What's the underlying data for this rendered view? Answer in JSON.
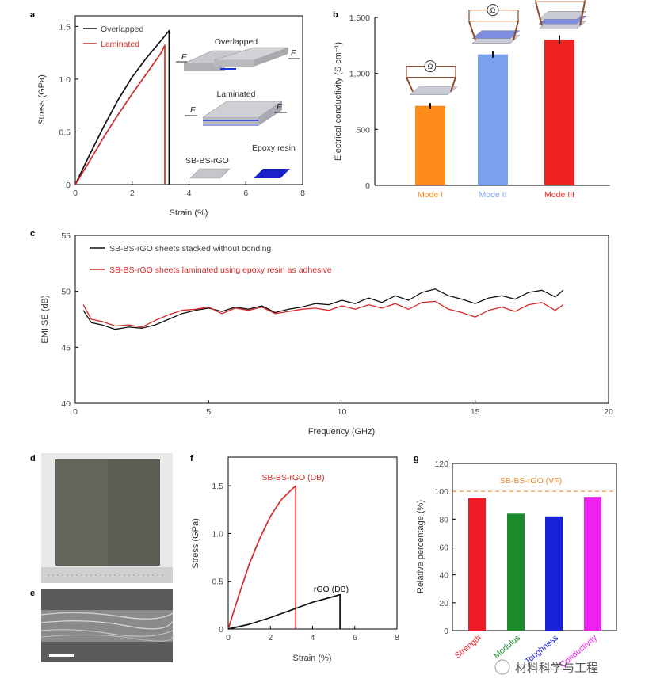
{
  "panels": {
    "a": "a",
    "b": "b",
    "c": "c",
    "d": "d",
    "e": "e",
    "f": "f",
    "g": "g"
  },
  "watermark": "材料科学与工程",
  "chart_data": [
    {
      "id": "a",
      "type": "line",
      "xlabel": "Strain (%)",
      "ylabel": "Stress (GPa)",
      "xlim": [
        0,
        8
      ],
      "ylim": [
        0,
        1.6
      ],
      "xticks": [
        "0",
        "2",
        "4",
        "6",
        "8"
      ],
      "yticks": [
        "0",
        "0.5",
        "1.0",
        "1.5"
      ],
      "legend": [
        "Overlapped",
        "Laminated"
      ],
      "legend_position": "top-left",
      "series": [
        {
          "name": "Overlapped",
          "color": "#111111",
          "x": [
            0,
            0.5,
            1.0,
            1.5,
            2.0,
            2.5,
            3.0,
            3.3,
            3.3
          ],
          "y": [
            0,
            0.28,
            0.55,
            0.8,
            1.02,
            1.2,
            1.36,
            1.46,
            0
          ]
        },
        {
          "name": "Laminated",
          "color": "#d42a2a",
          "x": [
            0,
            0.5,
            1.0,
            1.5,
            2.0,
            2.5,
            3.0,
            3.15,
            3.15
          ],
          "y": [
            0,
            0.22,
            0.45,
            0.66,
            0.86,
            1.05,
            1.24,
            1.32,
            0
          ]
        }
      ],
      "inset": {
        "overlapped_label": "Overlapped",
        "laminated_label": "Laminated",
        "force_label": "F",
        "key_labels": [
          "SB-BS-rGO",
          "Epoxy resin"
        ]
      }
    },
    {
      "id": "b",
      "type": "bar",
      "ylabel": "Electrical conductivity (S cm⁻¹)",
      "categories": [
        "Mode I",
        "Mode II",
        "Mode III"
      ],
      "values": [
        710,
        1170,
        1300
      ],
      "errors": [
        25,
        30,
        40
      ],
      "colors": [
        "#ff8c1a",
        "#7aa0ee",
        "#ee2222"
      ],
      "ylim": [
        0,
        1500
      ],
      "yticks": [
        "0",
        "500",
        "1,000",
        "1,500"
      ],
      "ohm_symbol": "Ω"
    },
    {
      "id": "c",
      "type": "line",
      "xlabel": "Frequency (GHz)",
      "ylabel": "EMI SE (dB)",
      "xlim": [
        0,
        20
      ],
      "ylim": [
        40,
        55
      ],
      "xticks": [
        "0",
        "5",
        "10",
        "15",
        "20"
      ],
      "yticks": [
        "40",
        "45",
        "50",
        "55"
      ],
      "legend_position": "top-left",
      "series": [
        {
          "name": "SB-BS-rGO sheets stacked without bonding",
          "color": "#111111",
          "x": [
            0.3,
            0.6,
            1,
            1.5,
            2,
            2.5,
            3,
            3.5,
            4,
            4.5,
            5,
            5.5,
            6,
            6.5,
            7,
            7.5,
            8,
            8.5,
            9,
            9.5,
            10,
            10.5,
            11,
            11.5,
            12,
            12.5,
            13,
            13.5,
            14,
            14.5,
            15,
            15.5,
            16,
            16.5,
            17,
            17.5,
            18,
            18.3
          ],
          "y": [
            48.3,
            47.2,
            47.0,
            46.6,
            46.8,
            46.7,
            47.0,
            47.5,
            48.0,
            48.3,
            48.5,
            48.2,
            48.6,
            48.4,
            48.7,
            48.1,
            48.4,
            48.6,
            48.9,
            48.8,
            49.2,
            48.9,
            49.4,
            49.0,
            49.6,
            49.2,
            49.9,
            50.2,
            49.6,
            49.3,
            48.9,
            49.4,
            49.6,
            49.3,
            49.9,
            50.1,
            49.5,
            50.1
          ]
        },
        {
          "name": "SB-BS-rGO sheets laminated using epoxy resin as adhesive",
          "color": "#d42a2a",
          "x": [
            0.3,
            0.6,
            1,
            1.5,
            2,
            2.5,
            3,
            3.5,
            4,
            4.5,
            5,
            5.5,
            6,
            6.5,
            7,
            7.5,
            8,
            8.5,
            9,
            9.5,
            10,
            10.5,
            11,
            11.5,
            12,
            12.5,
            13,
            13.5,
            14,
            14.5,
            15,
            15.5,
            16,
            16.5,
            17,
            17.5,
            18,
            18.3
          ],
          "y": [
            48.8,
            47.5,
            47.3,
            46.9,
            47.0,
            46.8,
            47.4,
            47.9,
            48.3,
            48.4,
            48.6,
            48.0,
            48.5,
            48.3,
            48.6,
            48.0,
            48.2,
            48.4,
            48.5,
            48.3,
            48.7,
            48.4,
            48.8,
            48.5,
            48.9,
            48.4,
            49.0,
            49.1,
            48.4,
            48.1,
            47.7,
            48.3,
            48.6,
            48.2,
            48.8,
            49.0,
            48.3,
            48.8
          ]
        }
      ]
    },
    {
      "id": "f",
      "type": "line",
      "xlabel": "Strain (%)",
      "ylabel": "Stress (GPa)",
      "xlim": [
        0,
        8
      ],
      "ylim": [
        0,
        1.8
      ],
      "xticks": [
        "0",
        "2",
        "4",
        "6",
        "8"
      ],
      "yticks": [
        "0",
        "0.5",
        "1.0",
        "1.5"
      ],
      "annotations": [
        "SB-BS-rGO (DB)",
        "rGO (DB)"
      ],
      "series": [
        {
          "name": "SB-BS-rGO (DB)",
          "color": "#d42a2a",
          "x": [
            0,
            0.5,
            1.0,
            1.5,
            2.0,
            2.5,
            3.0,
            3.2,
            3.2
          ],
          "y": [
            0,
            0.35,
            0.68,
            0.95,
            1.18,
            1.35,
            1.46,
            1.5,
            0
          ]
        },
        {
          "name": "rGO (DB)",
          "color": "#111111",
          "x": [
            0,
            1,
            2,
            3,
            4,
            5,
            5.3,
            5.3
          ],
          "y": [
            0,
            0.05,
            0.12,
            0.2,
            0.28,
            0.34,
            0.36,
            0
          ]
        }
      ]
    },
    {
      "id": "g",
      "type": "bar",
      "ylabel": "Relative percentage (%)",
      "categories": [
        "Strength",
        "Modulus",
        "Toughness",
        "Conductivity"
      ],
      "values": [
        95,
        84,
        82,
        96
      ],
      "colors": [
        "#ee1c25",
        "#1a8a2a",
        "#1a22d8",
        "#ee22ee"
      ],
      "ylim": [
        0,
        120
      ],
      "yticks": [
        "0",
        "20",
        "40",
        "60",
        "80",
        "100",
        "120"
      ],
      "reference_line": {
        "value": 100,
        "label": "SB-BS-rGO (VF)",
        "color": "#ee8a2a"
      }
    }
  ]
}
